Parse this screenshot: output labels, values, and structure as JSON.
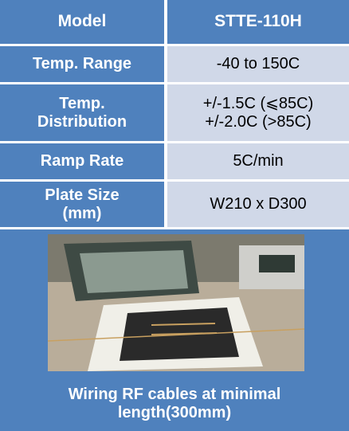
{
  "header": {
    "cells": [
      "Model",
      "STTE-110H"
    ]
  },
  "rows": [
    {
      "label": [
        "Temp. Range"
      ],
      "value": [
        "-40 to 150C"
      ]
    },
    {
      "label": [
        "Temp.",
        "Distribution"
      ],
      "value": [
        "+/-1.5C (⩽85C)",
        "+/-2.0C (>85C)"
      ]
    },
    {
      "label": [
        "Ramp Rate"
      ],
      "value": [
        "5C/min"
      ]
    },
    {
      "label": [
        "Plate Size",
        "(mm)"
      ],
      "value": [
        "W210 x D300"
      ]
    }
  ],
  "caption": [
    "Wiring RF cables at minimal",
    "length(300mm)"
  ]
}
